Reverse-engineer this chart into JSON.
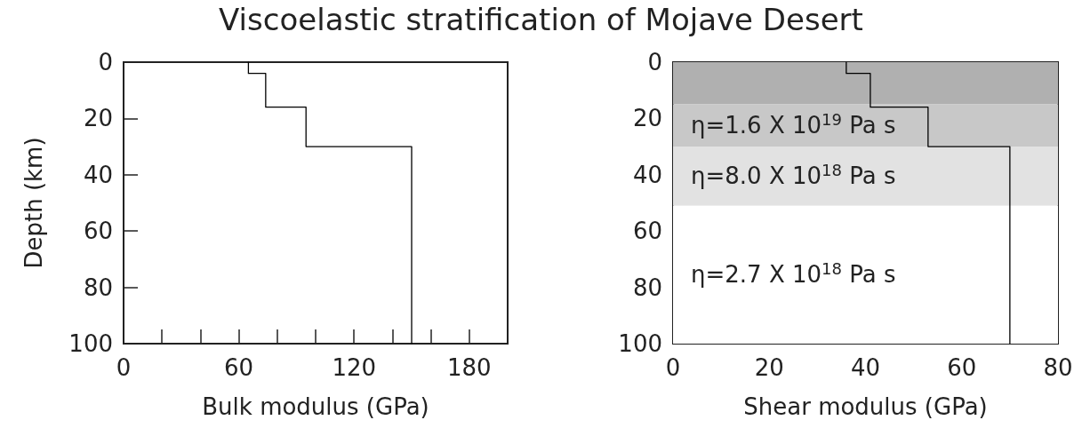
{
  "chart_data": [
    {
      "type": "line",
      "title": "Viscoelastic stratification of Mojave Desert",
      "xlabel": "Bulk modulus (GPa)",
      "ylabel": "Depth (km)",
      "series": [
        {
          "color": "#000000",
          "x": [
            65,
            65,
            74,
            74,
            95,
            95,
            150,
            150
          ],
          "values": [
            0,
            4,
            4,
            16,
            16,
            30,
            30,
            100
          ]
        }
      ],
      "xlim": [
        0,
        200
      ],
      "xticks": [
        0,
        {
          "value": 20,
          "label": null
        },
        {
          "value": 40,
          "label": null
        },
        60,
        {
          "value": 80,
          "label": null
        },
        {
          "value": 100,
          "label": null
        },
        120,
        {
          "value": 140,
          "label": null
        },
        {
          "value": 160,
          "label": null
        },
        180,
        {
          "value": 200,
          "label": null
        }
      ],
      "ylim": [
        100,
        0
      ],
      "yticks": [
        0,
        20,
        40,
        60,
        80,
        100
      ],
      "marker": "none"
    },
    {
      "type": "line",
      "xlabel": "Shear modulus (GPa)",
      "series": [
        {
          "color": "#000000",
          "x": [
            36,
            36,
            41,
            41,
            53,
            53,
            70,
            70
          ],
          "values": [
            0,
            4,
            4,
            16,
            16,
            30,
            30,
            100
          ]
        }
      ],
      "xlim": [
        0,
        80
      ],
      "xticks": [
        0,
        {
          "value": 10,
          "label": null
        },
        20,
        {
          "value": 30,
          "label": null
        },
        40,
        {
          "value": 50,
          "label": null
        },
        60,
        {
          "value": 70,
          "label": null
        },
        80
      ],
      "ylim": [
        100,
        0
      ],
      "yticks": [
        0,
        20,
        40,
        60,
        80,
        100
      ],
      "marker": "none",
      "bands": [
        {
          "axis": "y",
          "from": 0,
          "to": 15,
          "color": "#b0b0b0"
        },
        {
          "axis": "y",
          "from": 15,
          "to": 30,
          "color": "#c8c8c8",
          "label": "η=1.6 X 10$^{19}$ Pa s"
        },
        {
          "axis": "y",
          "from": 30,
          "to": 51,
          "color": "#e2e2e2",
          "label": "η=8.0 X 10$^{18}$ Pa s"
        },
        {
          "axis": "y",
          "from": 51,
          "to": 100,
          "color": "#ffffff",
          "label": "η=2.7 X 10$^{18}$ Pa s"
        }
      ]
    }
  ]
}
